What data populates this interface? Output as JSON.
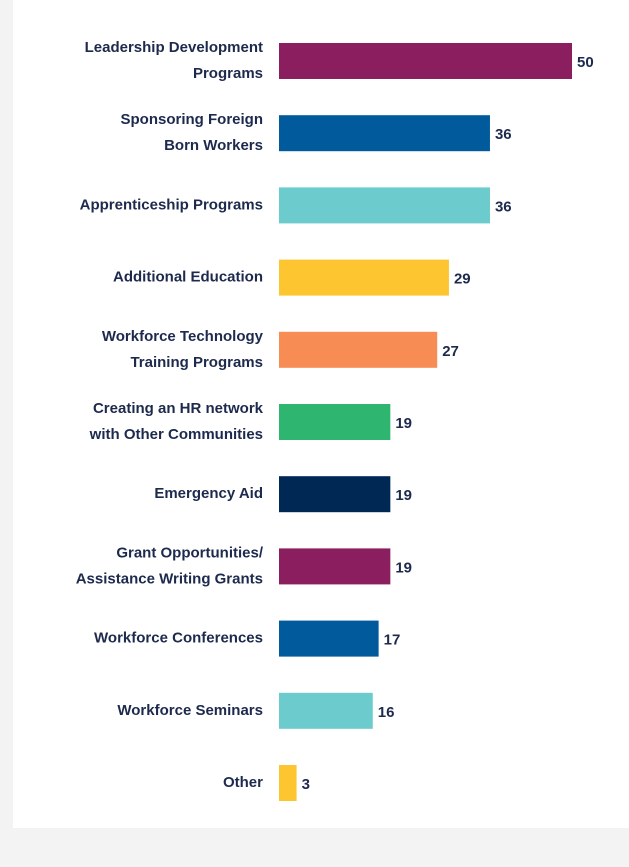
{
  "chart_data": {
    "type": "bar",
    "orientation": "horizontal",
    "categories": [
      [
        "Leadership Development",
        "Programs"
      ],
      [
        "Sponsoring Foreign",
        "Born Workers"
      ],
      [
        "Apprenticeship Programs"
      ],
      [
        "Additional Education"
      ],
      [
        "Workforce Technology",
        "Training Programs"
      ],
      [
        "Creating an HR network",
        "with Other Communities"
      ],
      [
        "Emergency Aid"
      ],
      [
        "Grant Opportunities/",
        "Assistance Writing Grants"
      ],
      [
        "Workforce Conferences"
      ],
      [
        "Workforce Seminars"
      ],
      [
        "Other"
      ]
    ],
    "values": [
      50,
      36,
      36,
      29,
      27,
      19,
      19,
      19,
      17,
      16,
      3
    ],
    "colors": [
      "#8b1e5e",
      "#005a9c",
      "#6ccbcc",
      "#fdc530",
      "#f78c55",
      "#2eb670",
      "#002855",
      "#8b1e5e",
      "#005a9c",
      "#6ccbcc",
      "#fdc530"
    ]
  }
}
